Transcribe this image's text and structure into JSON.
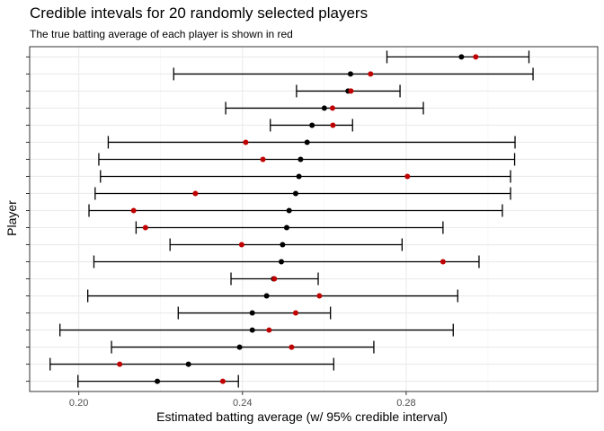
{
  "chart_data": {
    "type": "scatter",
    "title": "Credible intevals for 20 randomly selected players",
    "subtitle": "The true batting average of each player is shown in red",
    "xlabel": "Estimated batting average (w/ 95% credible interval)",
    "ylabel": "Player",
    "xlim": [
      0.188,
      0.3268
    ],
    "x_ticks": [
      0.2,
      0.24,
      0.28
    ],
    "x_tick_labels": [
      "0.20",
      "0.24",
      "0.28"
    ],
    "grid": true,
    "colors": {
      "estimate": "#000000",
      "true_average": "#c00000",
      "interval": "#000000"
    },
    "series": [
      {
        "estimate": 0.2192,
        "lower": 0.1998,
        "upper": 0.239,
        "true_average": 0.2352
      },
      {
        "estimate": 0.2268,
        "lower": 0.193,
        "upper": 0.2623,
        "true_average": 0.21
      },
      {
        "estimate": 0.2393,
        "lower": 0.208,
        "upper": 0.2721,
        "true_average": 0.252
      },
      {
        "estimate": 0.2424,
        "lower": 0.1954,
        "upper": 0.2915,
        "true_average": 0.2465
      },
      {
        "estimate": 0.2424,
        "lower": 0.2243,
        "upper": 0.2615,
        "true_average": 0.253
      },
      {
        "estimate": 0.2459,
        "lower": 0.2022,
        "upper": 0.2926,
        "true_average": 0.2588
      },
      {
        "estimate": 0.2476,
        "lower": 0.2372,
        "upper": 0.2585,
        "true_average": 0.2478
      },
      {
        "estimate": 0.2495,
        "lower": 0.2037,
        "upper": 0.2978,
        "true_average": 0.289
      },
      {
        "estimate": 0.2498,
        "lower": 0.2223,
        "upper": 0.279,
        "true_average": 0.2398
      },
      {
        "estimate": 0.2508,
        "lower": 0.214,
        "upper": 0.289,
        "true_average": 0.2163
      },
      {
        "estimate": 0.2514,
        "lower": 0.2025,
        "upper": 0.3035,
        "true_average": 0.2134
      },
      {
        "estimate": 0.253,
        "lower": 0.204,
        "upper": 0.3055,
        "true_average": 0.2285
      },
      {
        "estimate": 0.2538,
        "lower": 0.2053,
        "upper": 0.3055,
        "true_average": 0.2803
      },
      {
        "estimate": 0.2542,
        "lower": 0.2049,
        "upper": 0.3065,
        "true_average": 0.245
      },
      {
        "estimate": 0.2558,
        "lower": 0.2072,
        "upper": 0.3066,
        "true_average": 0.2408
      },
      {
        "estimate": 0.257,
        "lower": 0.2468,
        "upper": 0.2669,
        "true_average": 0.2621
      },
      {
        "estimate": 0.26,
        "lower": 0.2359,
        "upper": 0.2842,
        "true_average": 0.262
      },
      {
        "estimate": 0.2658,
        "lower": 0.2532,
        "upper": 0.2785,
        "true_average": 0.2665
      },
      {
        "estimate": 0.2664,
        "lower": 0.2232,
        "upper": 0.311,
        "true_average": 0.2713
      },
      {
        "estimate": 0.2935,
        "lower": 0.2753,
        "upper": 0.31,
        "true_average": 0.297
      }
    ]
  }
}
